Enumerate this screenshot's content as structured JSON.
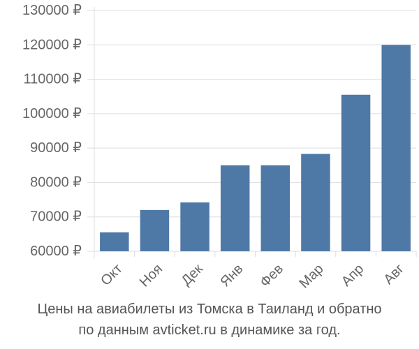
{
  "chart_data": {
    "type": "bar",
    "categories": [
      "Окт",
      "Ноя",
      "Дек",
      "Янв",
      "Фев",
      "Мар",
      "Апр",
      "Авг"
    ],
    "values": [
      65500,
      72000,
      74200,
      85000,
      85000,
      88300,
      105500,
      120000
    ],
    "ylim": [
      60000,
      130000
    ],
    "yticks": [
      60000,
      70000,
      80000,
      90000,
      100000,
      110000,
      120000,
      130000
    ],
    "ytick_labels": [
      "60000 ₽",
      "70000 ₽",
      "80000 ₽",
      "90000 ₽",
      "100000 ₽",
      "110000 ₽",
      "120000 ₽",
      "130000 ₽"
    ],
    "grid": true,
    "bar_color": "#4e79a7",
    "grid_color": "#dddddd"
  },
  "caption": {
    "line1": "Цены на авиабилеты из Томска в Таиланд и обратно",
    "line2": "по данным avticket.ru в динамике за год."
  }
}
